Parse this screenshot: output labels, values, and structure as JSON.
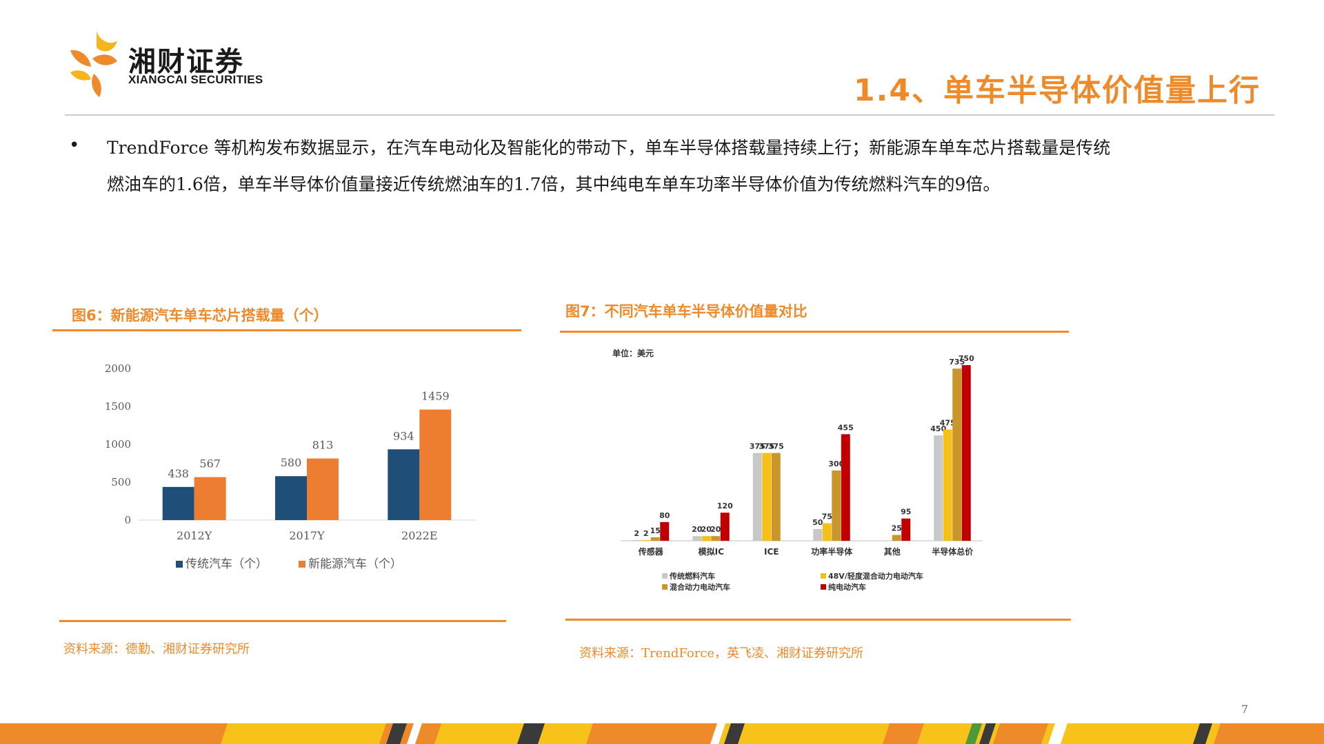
{
  "logo": {
    "cn": "湘财证券",
    "en": "XIANGCAI SECURITIES",
    "colors": {
      "orange": "#ee8a2a",
      "yellow": "#f4b61b"
    }
  },
  "header": {
    "title": "1.4、单车半导体价值量上行"
  },
  "body": {
    "bullet": "•",
    "text": "TrendForce 等机构发布数据显示，在汽车电动化及智能化的带动下，单车半导体搭载量持续上行；新能源车单车芯片搭载量是传统燃油车的1.6倍，单车半导体价值量接近传统燃油车的1.7倍，其中纯电车单车功率半导体价值为传统燃料汽车的9倍。"
  },
  "figures": {
    "fig6": {
      "caption": "图6：新能源汽车单车芯片搭载量（个）",
      "source": "资料来源：德勤、湘财证券研究所"
    },
    "fig7": {
      "caption": "图7：不同汽车单车半导体价值量对比",
      "source": "资料来源：TrendForce，英飞凌、湘财证券研究所",
      "unit": "单位：美元"
    }
  },
  "chart_data": [
    {
      "type": "bar",
      "categories": [
        "2012Y",
        "2017Y",
        "2022E"
      ],
      "series": [
        {
          "name": "传统汽车（个）",
          "values": [
            438,
            580,
            934
          ],
          "color": "#1f4e79"
        },
        {
          "name": "新能源汽车（个）",
          "values": [
            567,
            813,
            1459
          ],
          "color": "#ed7d31"
        }
      ],
      "y_ticks": [
        "0",
        "500",
        "1000",
        "1500",
        "2000"
      ],
      "ylim": [
        0,
        2000
      ],
      "legend": "bottom",
      "grid": false
    },
    {
      "type": "bar",
      "categories": [
        "传感器",
        "模拟IC",
        "ICE",
        "功率半导体",
        "其他",
        "半导体总价"
      ],
      "series": [
        {
          "name": "传统燃料汽车",
          "values": [
            2,
            20,
            375,
            50,
            null,
            450
          ],
          "labels": [
            "2",
            "20",
            "375",
            "50",
            "",
            "450"
          ],
          "color": "#c8c8c8"
        },
        {
          "name": "48V/轻度混合动力电动汽车",
          "values": [
            2,
            20,
            375,
            75,
            null,
            475
          ],
          "labels": [
            "2",
            "20",
            "375",
            "75",
            "",
            "475"
          ],
          "color": "#f5c118"
        },
        {
          "name": "混合动力电动汽车",
          "values": [
            15,
            20,
            375,
            300,
            25,
            735
          ],
          "labels": [
            "15",
            "20",
            "375",
            "300",
            "25",
            "735"
          ],
          "color": "#c9962a"
        },
        {
          "name": "纯电动汽车",
          "values": [
            80,
            120,
            null,
            455,
            95,
            750
          ],
          "labels": [
            "80",
            "120",
            "",
            "455",
            "95",
            "750"
          ],
          "color": "#c00000"
        }
      ],
      "legend": "bottom",
      "grid": false
    }
  ],
  "page": {
    "number": "7"
  }
}
